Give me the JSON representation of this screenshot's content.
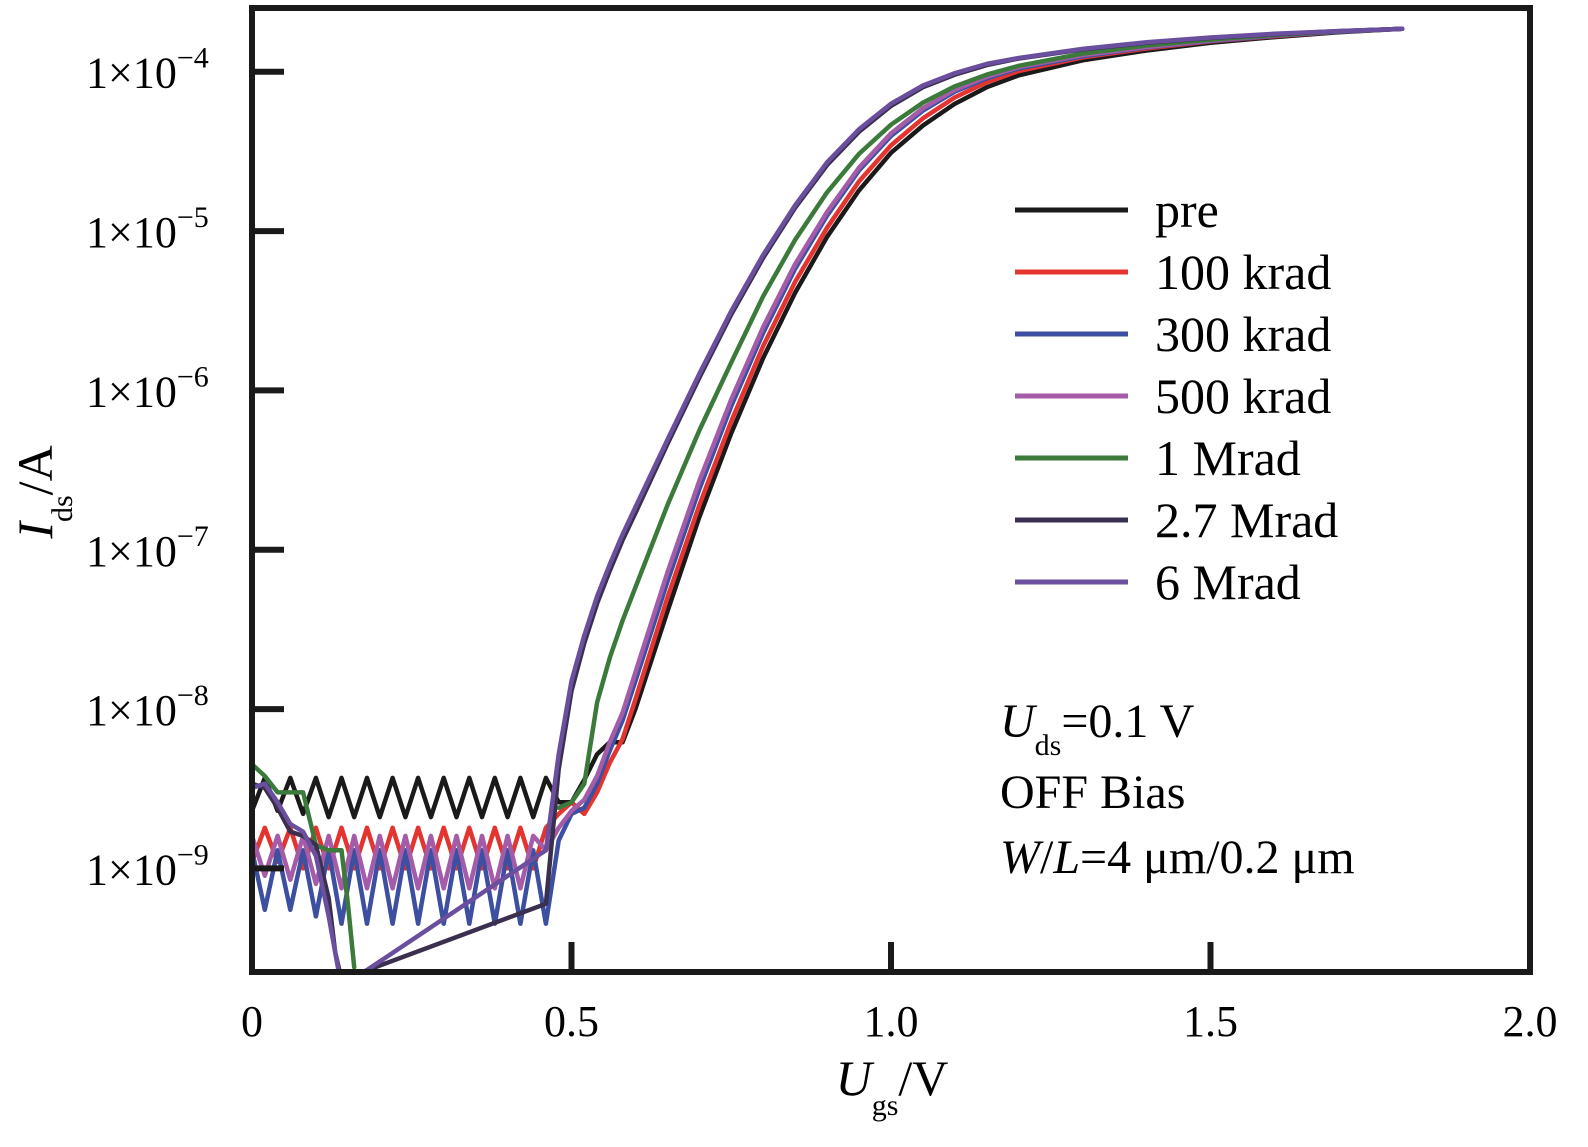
{
  "chart_data": {
    "type": "line",
    "xlabel": {
      "main": "U",
      "sub": "gs",
      "unit": "/V"
    },
    "ylabel": {
      "main": "I",
      "sub": "ds",
      "unit": "/A"
    },
    "xlim": [
      0,
      2.0
    ],
    "ylim_log10": [
      -9.65,
      -3.6
    ],
    "y_scale": "log",
    "x_ticks": [
      {
        "value": 0,
        "label": "0"
      },
      {
        "value": 0.5,
        "label": "0.5"
      },
      {
        "value": 1.0,
        "label": "1.0"
      },
      {
        "value": 1.5,
        "label": "1.5"
      },
      {
        "value": 2.0,
        "label": "2.0"
      }
    ],
    "y_ticks": [
      {
        "value": 0.0001,
        "mant": "1×10",
        "exp": "−4"
      },
      {
        "value": 1e-05,
        "mant": "1×10",
        "exp": "−5"
      },
      {
        "value": 1e-06,
        "mant": "1×10",
        "exp": "−6"
      },
      {
        "value": 1e-07,
        "mant": "1×10",
        "exp": "−7"
      },
      {
        "value": 1e-08,
        "mant": "1×10",
        "exp": "−8"
      },
      {
        "value": 1e-09,
        "mant": "1×10",
        "exp": "−9"
      }
    ],
    "legend_position": "right",
    "annotations": [
      {
        "main": "U",
        "sub": "ds",
        "rest": "=0.1 V"
      },
      {
        "text": "OFF Bias"
      },
      {
        "w": "W",
        "slash": "/",
        "l": "L",
        "rest": "=4 μm/0.2 μm"
      }
    ],
    "series": [
      {
        "name": "pre",
        "color": "#1a1a1a",
        "x": [
          0,
          0.02,
          0.04,
          0.06,
          0.08,
          0.1,
          0.12,
          0.14,
          0.16,
          0.18,
          0.2,
          0.22,
          0.24,
          0.26,
          0.28,
          0.3,
          0.32,
          0.34,
          0.36,
          0.38,
          0.4,
          0.42,
          0.44,
          0.46,
          0.48,
          0.5,
          0.52,
          0.54,
          0.56,
          0.58,
          0.6,
          0.65,
          0.7,
          0.75,
          0.8,
          0.85,
          0.9,
          0.95,
          1.0,
          1.05,
          1.1,
          1.15,
          1.2,
          1.3,
          1.4,
          1.5,
          1.6,
          1.7,
          1.8
        ],
        "y": [
          2.3e-09,
          3.7e-09,
          2.3e-09,
          3.7e-09,
          2.2e-09,
          3.7e-09,
          2.1e-09,
          3.7e-09,
          2.1e-09,
          3.7e-09,
          2.1e-09,
          3.7e-09,
          2.1e-09,
          3.7e-09,
          2.1e-09,
          3.7e-09,
          2.1e-09,
          3.7e-09,
          2.1e-09,
          3.7e-09,
          2.1e-09,
          3.7e-09,
          2.1e-09,
          3.7e-09,
          2.6e-09,
          2.6e-09,
          3.6e-09,
          5.2e-09,
          6.2e-09,
          6.2e-09,
          1e-08,
          4.1e-08,
          1.6e-07,
          5.4e-07,
          1.6e-06,
          4.1e-06,
          9.2e-06,
          1.8e-05,
          3.1e-05,
          4.6e-05,
          6.3e-05,
          8e-05,
          9.5e-05,
          0.000118,
          0.000136,
          0.000152,
          0.000165,
          0.000177,
          0.000186
        ]
      },
      {
        "name": "100 krad",
        "color": "#e3342f",
        "x": [
          0,
          0.02,
          0.04,
          0.06,
          0.08,
          0.1,
          0.12,
          0.14,
          0.16,
          0.18,
          0.2,
          0.22,
          0.24,
          0.26,
          0.28,
          0.3,
          0.32,
          0.34,
          0.36,
          0.38,
          0.4,
          0.42,
          0.44,
          0.46,
          0.48,
          0.5,
          0.52,
          0.54,
          0.56,
          0.58,
          0.6,
          0.65,
          0.7,
          0.75,
          0.8,
          0.85,
          0.9,
          0.95,
          1.0,
          1.05,
          1.1,
          1.15,
          1.2,
          1.3,
          1.4,
          1.5,
          1.6,
          1.7,
          1.8
        ],
        "y": [
          1.1e-09,
          1.8e-09,
          1.1e-09,
          1.8e-09,
          1e-09,
          1.8e-09,
          1e-09,
          1.8e-09,
          1e-09,
          1.8e-09,
          1e-09,
          1.8e-09,
          1e-09,
          1.8e-09,
          1e-09,
          1.8e-09,
          1e-09,
          1.8e-09,
          1e-09,
          1.8e-09,
          1e-09,
          1.8e-09,
          1e-09,
          1.8e-09,
          2.2e-09,
          2.6e-09,
          2.2e-09,
          3e-09,
          4.6e-09,
          6.5e-09,
          1.15e-08,
          5e-08,
          1.9e-07,
          6.4e-07,
          1.9e-06,
          4.8e-06,
          1.05e-05,
          2.05e-05,
          3.45e-05,
          5.1e-05,
          6.9e-05,
          8.6e-05,
          0.000101,
          0.000123,
          0.00014,
          0.000155,
          0.000167,
          0.000178,
          0.000186
        ]
      },
      {
        "name": "300 krad",
        "color": "#3c4fa1",
        "x": [
          0,
          0.02,
          0.04,
          0.06,
          0.08,
          0.1,
          0.12,
          0.14,
          0.16,
          0.18,
          0.2,
          0.22,
          0.24,
          0.26,
          0.28,
          0.3,
          0.32,
          0.34,
          0.36,
          0.38,
          0.4,
          0.42,
          0.44,
          0.46,
          0.48,
          0.5,
          0.52,
          0.54,
          0.56,
          0.58,
          0.6,
          0.65,
          0.7,
          0.75,
          0.8,
          0.85,
          0.9,
          0.95,
          1.0,
          1.05,
          1.1,
          1.15,
          1.2,
          1.3,
          1.4,
          1.5,
          1.6,
          1.7,
          1.8
        ],
        "y": [
          1.3e-09,
          5.5e-10,
          1.3e-09,
          5.5e-10,
          1.3e-09,
          5e-10,
          1.3e-09,
          4.5e-10,
          1.3e-09,
          4.5e-10,
          1.3e-09,
          4.5e-10,
          1.3e-09,
          4.5e-10,
          1.3e-09,
          4.5e-10,
          1.3e-09,
          4.5e-10,
          1.3e-09,
          4.5e-10,
          1.3e-09,
          4.5e-10,
          1.3e-09,
          4.5e-10,
          1.5e-09,
          2.2e-09,
          2.4e-09,
          3.4e-09,
          5.5e-09,
          8.5e-09,
          1.5e-08,
          6.3e-08,
          2.4e-07,
          8e-07,
          2.3e-06,
          5.8e-06,
          1.25e-05,
          2.4e-05,
          3.95e-05,
          5.7e-05,
          7.5e-05,
          9.1e-05,
          0.000105,
          0.000125,
          0.000142,
          0.000156,
          0.000168,
          0.000178,
          0.000186
        ]
      },
      {
        "name": "500 krad",
        "color": "#a45ba8",
        "x": [
          0,
          0.02,
          0.04,
          0.06,
          0.08,
          0.1,
          0.12,
          0.14,
          0.16,
          0.18,
          0.2,
          0.22,
          0.24,
          0.26,
          0.28,
          0.3,
          0.32,
          0.34,
          0.36,
          0.38,
          0.4,
          0.42,
          0.44,
          0.46,
          0.48,
          0.5,
          0.52,
          0.54,
          0.56,
          0.58,
          0.6,
          0.65,
          0.7,
          0.75,
          0.8,
          0.85,
          0.9,
          0.95,
          1.0,
          1.05,
          1.1,
          1.15,
          1.2,
          1.3,
          1.4,
          1.5,
          1.6,
          1.7,
          1.8
        ],
        "y": [
          1.6e-09,
          9e-10,
          1.6e-09,
          8.5e-10,
          1.6e-09,
          8e-10,
          1.6e-09,
          7.5e-10,
          1.6e-09,
          7.5e-10,
          1.6e-09,
          7.5e-10,
          1.6e-09,
          7.5e-10,
          1.6e-09,
          7.5e-10,
          1.6e-09,
          7.5e-10,
          1.6e-09,
          7.5e-10,
          1.6e-09,
          7.5e-10,
          1.6e-09,
          1.3e-09,
          1.8e-09,
          2.3e-09,
          2.7e-09,
          3.8e-09,
          6.2e-09,
          9.5e-09,
          1.7e-08,
          7.2e-08,
          2.7e-07,
          8.8e-07,
          2.5e-06,
          6.2e-06,
          1.32e-05,
          2.5e-05,
          4.1e-05,
          5.9e-05,
          7.7e-05,
          9.3e-05,
          0.000107,
          0.000127,
          0.000143,
          0.000157,
          0.000169,
          0.000179,
          0.000186
        ]
      },
      {
        "name": "1 Mrad",
        "color": "#3b7a3b",
        "x": [
          0,
          0.02,
          0.04,
          0.06,
          0.08,
          0.1,
          0.12,
          0.14,
          0.15,
          0.16,
          0.46,
          0.48,
          0.5,
          0.52,
          0.54,
          0.56,
          0.58,
          0.6,
          0.65,
          0.7,
          0.75,
          0.8,
          0.85,
          0.9,
          0.95,
          1.0,
          1.05,
          1.1,
          1.15,
          1.2,
          1.3,
          1.4,
          1.5,
          1.6,
          1.7,
          1.8
        ],
        "y": [
          4.5e-09,
          3.8e-09,
          3e-09,
          3e-09,
          3e-09,
          1.4e-09,
          1.3e-09,
          1.3e-09,
          6e-10,
          2.4e-10,
          null,
          2.4e-09,
          2.6e-09,
          3.4e-09,
          1.1e-08,
          2.1e-08,
          3.6e-08,
          5.8e-08,
          1.9e-07,
          5.6e-07,
          1.5e-06,
          3.9e-06,
          8.8e-06,
          1.75e-05,
          3.05e-05,
          4.65e-05,
          6.4e-05,
          8.1e-05,
          9.6e-05,
          0.000109,
          0.00013,
          0.000146,
          0.000159,
          0.00017,
          0.000179,
          0.000186
        ]
      },
      {
        "name": "2.7 Mrad",
        "color": "#3a2f4e",
        "x": [
          0,
          0.02,
          0.04,
          0.06,
          0.08,
          0.1,
          0.12,
          0.13,
          0.14,
          0.46,
          0.48,
          0.5,
          0.52,
          0.54,
          0.56,
          0.58,
          0.6,
          0.65,
          0.7,
          0.75,
          0.8,
          0.85,
          0.9,
          0.95,
          1.0,
          1.05,
          1.1,
          1.15,
          1.2,
          1.3,
          1.4,
          1.5,
          1.6,
          1.7,
          1.8
        ],
        "y": [
          3.4e-09,
          3.2e-09,
          2.4e-09,
          1.7e-09,
          1.6e-09,
          1.4e-09,
          6.5e-10,
          3e-10,
          2e-10,
          6e-10,
          4.2e-09,
          1.3e-08,
          2.6e-08,
          4.6e-08,
          7.4e-08,
          1.15e-07,
          1.7e-07,
          4.6e-07,
          1.2e-06,
          3e-06,
          6.8e-06,
          1.4e-05,
          2.6e-05,
          4.2e-05,
          6.1e-05,
          8e-05,
          9.6e-05,
          0.00011,
          0.000121,
          0.000138,
          0.000152,
          0.000163,
          0.000172,
          0.00018,
          0.000186
        ]
      },
      {
        "name": "6 Mrad",
        "color": "#6a4f9e",
        "x": [
          0,
          0.02,
          0.04,
          0.06,
          0.08,
          0.1,
          0.12,
          0.14,
          0.46,
          0.48,
          0.5,
          0.52,
          0.54,
          0.56,
          0.58,
          0.6,
          0.65,
          0.7,
          0.75,
          0.8,
          0.85,
          0.9,
          0.95,
          1.0,
          1.05,
          1.1,
          1.15,
          1.2,
          1.3,
          1.4,
          1.5,
          1.6,
          1.7,
          1.8
        ],
        "y": [
          3.2e-09,
          3.4e-09,
          2.6e-09,
          1.9e-09,
          1.7e-09,
          1.2e-09,
          5e-10,
          1.8e-10,
          1.3e-09,
          5.2e-09,
          1.5e-08,
          2.9e-08,
          5.1e-08,
          8.1e-08,
          1.25e-07,
          1.85e-07,
          4.9e-07,
          1.27e-06,
          3.15e-06,
          7.1e-06,
          1.45e-05,
          2.7e-05,
          4.35e-05,
          6.3e-05,
          8.2e-05,
          9.8e-05,
          0.000112,
          0.000122,
          0.000139,
          0.000153,
          0.000164,
          0.000173,
          0.00018,
          0.000186
        ]
      }
    ]
  }
}
